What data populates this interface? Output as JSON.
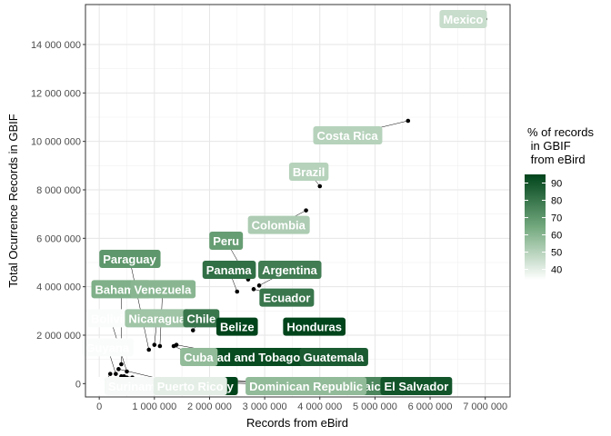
{
  "chart_data": {
    "type": "scatter",
    "title": "",
    "xlabel": "Records from eBird",
    "ylabel": "Total Ocurrence Records in GBIF",
    "xlim": [
      -250000,
      7450000
    ],
    "ylim": [
      -550000,
      15650000
    ],
    "x_ticks": [
      0,
      1000000,
      2000000,
      3000000,
      4000000,
      5000000,
      6000000,
      7000000
    ],
    "x_tick_labels": [
      "0",
      "1 000 000",
      "2 000 000",
      "3 000 000",
      "4 000 000",
      "5 000 000",
      "6 000 000",
      "7 000 000"
    ],
    "y_ticks": [
      0,
      2000000,
      4000000,
      6000000,
      8000000,
      10000000,
      12000000,
      14000000
    ],
    "y_tick_labels": [
      "0",
      "2 000 000",
      "4 000 000",
      "6 000 000",
      "8 000 000",
      "10 000 000",
      "12 000 000",
      "14 000 000"
    ],
    "grid": true,
    "legend": {
      "title": "% of records\n in GBIF\n from eBird",
      "position": "right",
      "ticks": [
        40,
        50,
        60,
        70,
        80,
        90
      ],
      "range": [
        34,
        95
      ],
      "color_low": "#ffffff",
      "color_high": "#00441b"
    },
    "points": [
      {
        "label": "Mexico",
        "x": 7000000,
        "y": 15050000,
        "pct": 46,
        "lx": 6600000,
        "ly": 15050000
      },
      {
        "label": "Costa Rica",
        "x": 5600000,
        "y": 10850000,
        "pct": 50,
        "lx": 4500000,
        "ly": 10250000
      },
      {
        "label": "Brazil",
        "x": 4000000,
        "y": 8150000,
        "pct": 50,
        "lx": 3800000,
        "ly": 8750000
      },
      {
        "label": "Colombia",
        "x": 3750000,
        "y": 7150000,
        "pct": 52,
        "lx": 3250000,
        "ly": 6550000
      },
      {
        "label": "Peru",
        "x": 2700000,
        "y": 4300000,
        "pct": 68,
        "lx": 2300000,
        "ly": 5900000
      },
      {
        "label": "Panama",
        "x": 2500000,
        "y": 3800000,
        "pct": 82,
        "lx": 2350000,
        "ly": 4700000
      },
      {
        "label": "Argentina",
        "x": 2900000,
        "y": 4050000,
        "pct": 78,
        "lx": 3450000,
        "ly": 4700000
      },
      {
        "label": "Ecuador",
        "x": 2800000,
        "y": 3900000,
        "pct": 80,
        "lx": 3400000,
        "ly": 3550000
      },
      {
        "label": "Paraguay",
        "x": 900000,
        "y": 1400000,
        "pct": 70,
        "lx": 550000,
        "ly": 5150000
      },
      {
        "label": "Bahamas",
        "x": 400000,
        "y": 800000,
        "pct": 62,
        "lx": 400000,
        "ly": 3900000
      },
      {
        "label": "Venezuela",
        "x": 1100000,
        "y": 1550000,
        "pct": 60,
        "lx": 1150000,
        "ly": 3900000
      },
      {
        "label": "Bolivia",
        "x": 500000,
        "y": 500000,
        "pct": 35,
        "lx": 200000,
        "ly": 2700000
      },
      {
        "label": "Nicaragua",
        "x": 1000000,
        "y": 1600000,
        "pct": 55,
        "lx": 1050000,
        "ly": 2700000
      },
      {
        "label": "Chile",
        "x": 1700000,
        "y": 2200000,
        "pct": 80,
        "lx": 1850000,
        "ly": 2700000
      },
      {
        "label": "Belize",
        "x": 2400000,
        "y": 2600000,
        "pct": 95,
        "lx": 2500000,
        "ly": 2350000
      },
      {
        "label": "Honduras",
        "x": 3900000,
        "y": 2350000,
        "pct": 95,
        "lx": 3900000,
        "ly": 2350000
      },
      {
        "label": "Guyana",
        "x": 300000,
        "y": 400000,
        "pct": 35,
        "lx": 150000,
        "ly": 1500000
      },
      {
        "label": "Trinidad and Tobago",
        "x": 1400000,
        "y": 1600000,
        "pct": 93,
        "lx": 2600000,
        "ly": 1100000
      },
      {
        "label": "Guatemala",
        "x": 2100000,
        "y": 1200000,
        "pct": 88,
        "lx": 4250000,
        "ly": 1100000
      },
      {
        "label": "Cuba",
        "x": 1350000,
        "y": 1550000,
        "pct": 58,
        "lx": 1800000,
        "ly": 1100000
      },
      {
        "label": "Haiti",
        "x": 200000,
        "y": 400000,
        "pct": 34,
        "lx": 50000,
        "ly": -100000
      },
      {
        "label": "Suriname",
        "x": 400000,
        "y": 300000,
        "pct": 36,
        "lx": 650000,
        "ly": -100000
      },
      {
        "label": "Jamaica",
        "x": 500000,
        "y": 250000,
        "pct": 75,
        "lx": 4800000,
        "ly": -100000
      },
      {
        "label": "Dominican Republic",
        "x": 600000,
        "y": 200000,
        "pct": 58,
        "lx": 3750000,
        "ly": -100000
      },
      {
        "label": "Uruguay",
        "x": 450000,
        "y": 300000,
        "pct": 95,
        "lx": 2000000,
        "ly": -100000
      },
      {
        "label": "El Salvador",
        "x": 600000,
        "y": 250000,
        "pct": 90,
        "lx": 5750000,
        "ly": -100000
      },
      {
        "label": "Puerto Rico",
        "x": 350000,
        "y": 600000,
        "pct": 40,
        "lx": 1650000,
        "ly": -100000
      }
    ]
  }
}
